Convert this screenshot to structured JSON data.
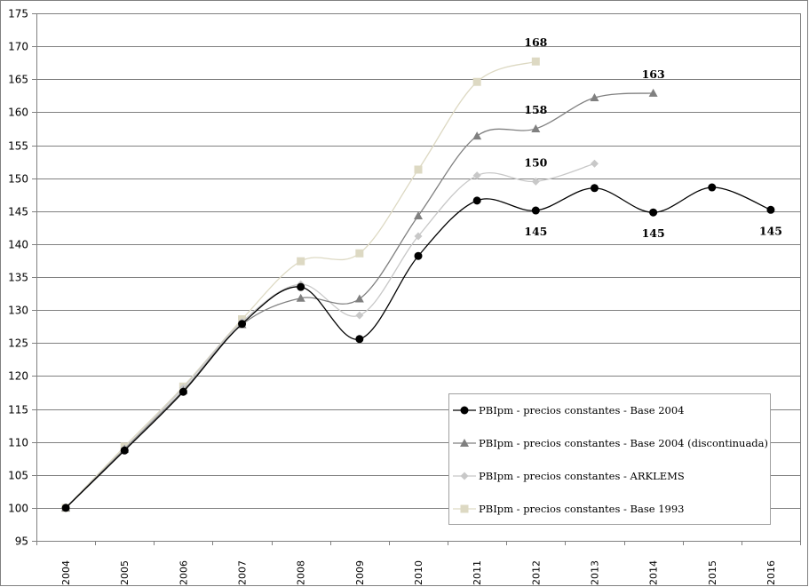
{
  "chart_data": {
    "type": "line",
    "title": "",
    "xlabel": "",
    "ylabel": "",
    "ylim": [
      95,
      175
    ],
    "y_ticks": [
      95,
      100,
      105,
      110,
      115,
      120,
      125,
      130,
      135,
      140,
      145,
      150,
      155,
      160,
      165,
      170,
      175
    ],
    "grid": true,
    "smoothed": true,
    "legend_position": "lower right (inside plot)",
    "categories": [
      "2004",
      "2005",
      "2006",
      "2007",
      "2008",
      "2009",
      "2010",
      "2011",
      "2012",
      "2013",
      "2014",
      "2015",
      "2016"
    ],
    "series": [
      {
        "name": "PBIpm - precios constantes - Base 2004",
        "marker": "circle",
        "color": "#000000",
        "values": [
          100,
          108.7,
          117.6,
          127.9,
          133.5,
          125.6,
          138.2,
          146.6,
          145.1,
          148.5,
          144.8,
          148.6,
          145.2
        ]
      },
      {
        "name": "PBIpm - precios constantes - Base 2004 (discontinuada)",
        "marker": "triangle",
        "color": "#808080",
        "values": [
          100,
          108.9,
          117.8,
          127.8,
          131.8,
          131.7,
          144.3,
          156.4,
          157.5,
          162.2,
          162.9,
          null,
          null
        ]
      },
      {
        "name": "PBIpm - precios constantes - ARKLEMS",
        "marker": "diamond",
        "color": "#c8c8c8",
        "values": [
          100,
          109.0,
          118.2,
          128.2,
          133.9,
          129.2,
          141.2,
          150.4,
          149.5,
          152.2,
          null,
          null,
          null
        ]
      },
      {
        "name": "PBIpm - precios constantes - Base 1993",
        "marker": "square",
        "color": "#ddd9c3",
        "values": [
          100,
          109.3,
          118.4,
          128.6,
          137.4,
          138.6,
          151.3,
          164.6,
          167.7,
          null,
          null,
          null,
          null
        ]
      }
    ],
    "annotations": [
      {
        "text": "168",
        "category": "2012",
        "series": "Base 1993",
        "position": "above"
      },
      {
        "text": "163",
        "category": "2014",
        "series": "Base 2004 (discontinuada)",
        "position": "above"
      },
      {
        "text": "158",
        "category": "2012",
        "series": "Base 2004 (discontinuada)",
        "position": "above"
      },
      {
        "text": "150",
        "category": "2012",
        "series": "ARKLEMS",
        "position": "above"
      },
      {
        "text": "145",
        "category": "2012",
        "series": "Base 2004",
        "position": "below"
      },
      {
        "text": "145",
        "category": "2014",
        "series": "Base 2004",
        "position": "below"
      },
      {
        "text": "145",
        "category": "2016",
        "series": "Base 2004",
        "position": "below"
      }
    ]
  },
  "legend": {
    "items": [
      "PBIpm - precios constantes - Base 2004",
      "PBIpm - precios constantes - Base 2004 (discontinuada)",
      "PBIpm - precios constantes - ARKLEMS",
      "PBIpm - precios constantes - Base 1993"
    ]
  }
}
